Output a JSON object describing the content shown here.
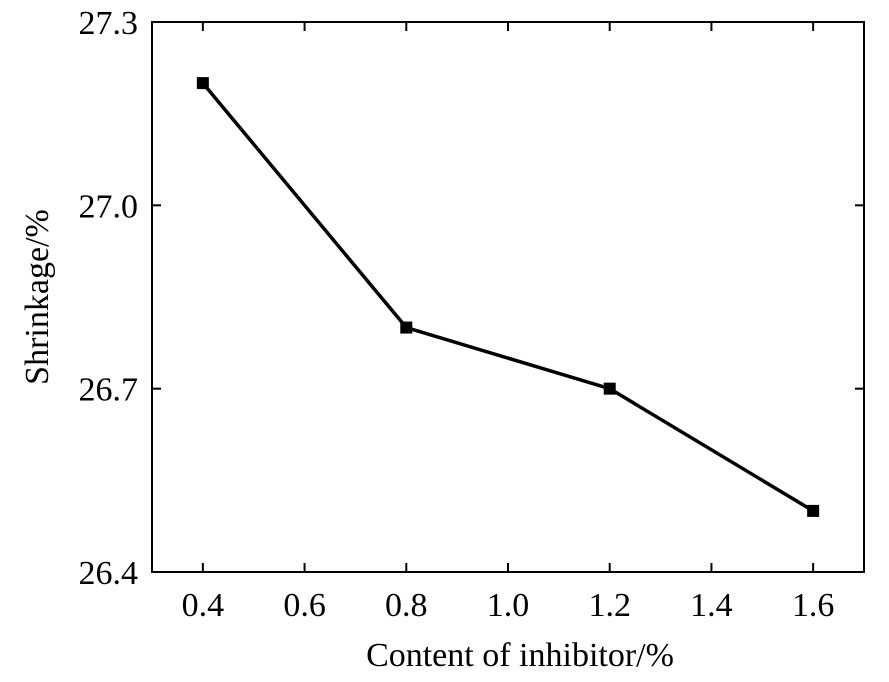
{
  "chart_data": {
    "type": "line",
    "title": "",
    "xlabel": "Content of inhibitor/%",
    "ylabel": "Shrinkage/%",
    "x": [
      0.4,
      0.8,
      1.2,
      1.6
    ],
    "series": [
      {
        "values": [
          27.2,
          26.8,
          26.7,
          26.5
        ]
      }
    ],
    "xlim": [
      0.3,
      1.7
    ],
    "ylim": [
      26.4,
      27.3
    ],
    "xticks": [
      "0.4",
      "0.6",
      "0.8",
      "1.0",
      "1.2",
      "1.4",
      "1.6"
    ],
    "yticks": [
      "26.4",
      "26.7",
      "27.0",
      "27.3"
    ],
    "marker": "square",
    "grid": false,
    "legend": "none",
    "colors": {
      "line": "#000000",
      "axis": "#000000"
    }
  }
}
